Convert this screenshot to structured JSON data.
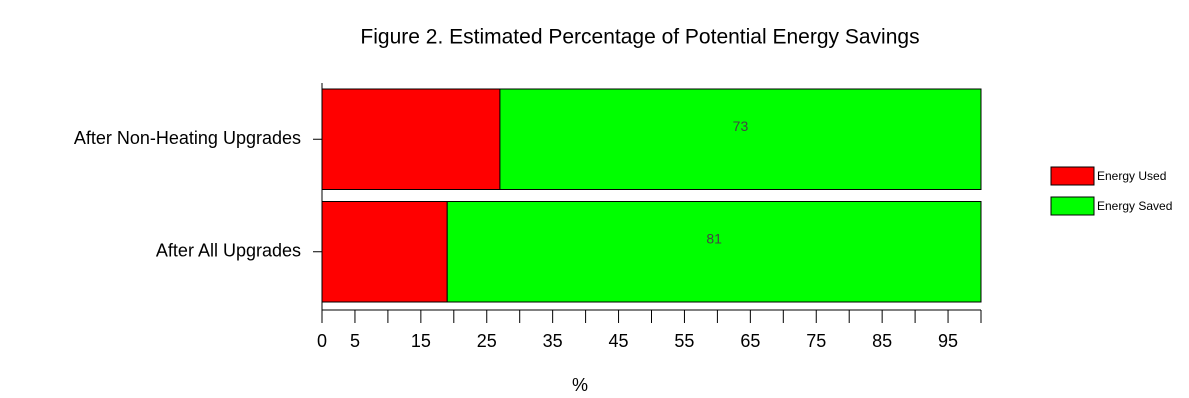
{
  "chart_data": {
    "type": "stacked_hbar",
    "title": "Figure 2. Estimated Percentage of Potential Energy Savings",
    "categories": [
      "After Non-Heating Upgrades",
      "After All Upgrades"
    ],
    "series": [
      {
        "name": "Energy Used",
        "color": "#ff0000",
        "values": [
          27,
          19
        ],
        "show_values": false
      },
      {
        "name": "Energy Saved",
        "color": "#00ff00",
        "values": [
          73,
          81
        ],
        "show_values": true
      }
    ],
    "xlabel": "%",
    "xlim": [
      0,
      100
    ],
    "xticks": [
      0,
      5,
      15,
      25,
      35,
      45,
      55,
      65,
      75,
      85,
      95
    ],
    "minor_xticks": [
      10,
      20,
      30,
      40,
      50,
      60,
      70,
      80,
      90,
      100
    ],
    "legend": "right"
  }
}
